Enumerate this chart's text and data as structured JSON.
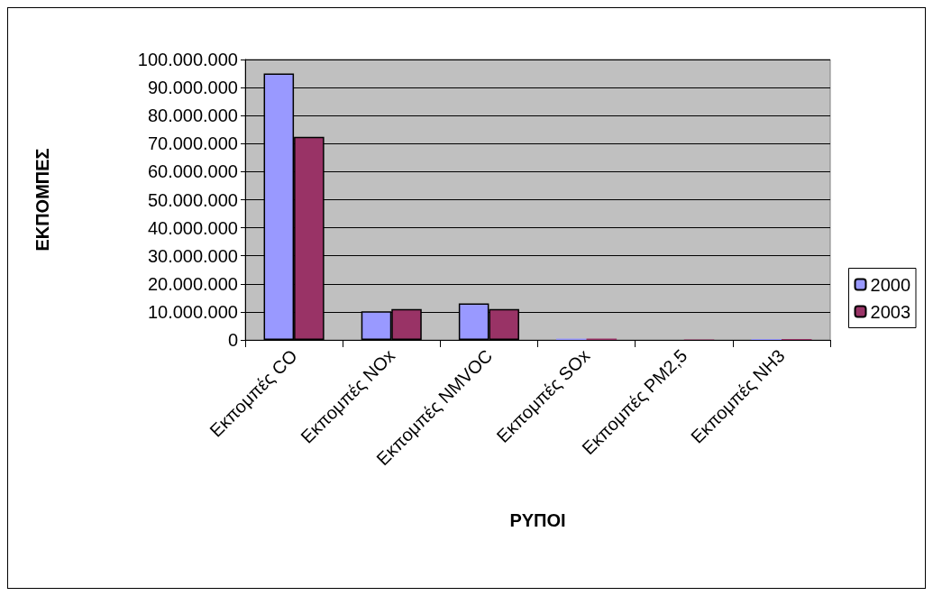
{
  "chart_data": {
    "type": "bar",
    "xlabel": "ΡΥΠΟΙ",
    "ylabel": "ΕΚΠΟΜΠΕΣ",
    "categories": [
      "Εκπομπές CO",
      "Εκπομπές NOx",
      "Εκπομπές NMVOC",
      "Εκπομπές SOx",
      "Εκπομπές PM2,5",
      "Εκπομπές NH3"
    ],
    "series": [
      {
        "name": "2000",
        "color": "#9999ff",
        "values": [
          95000000,
          10200000,
          13000000,
          500000,
          null,
          300000
        ]
      },
      {
        "name": "2003",
        "color": "#993366",
        "values": [
          72400000,
          11000000,
          11000000,
          500000,
          200000,
          300000
        ]
      }
    ],
    "ylim": [
      0,
      100000000
    ],
    "yticks": [
      {
        "value": 0,
        "label": "0"
      },
      {
        "value": 10000000,
        "label": "10.000.000"
      },
      {
        "value": 20000000,
        "label": "20.000.000"
      },
      {
        "value": 30000000,
        "label": "30.000.000"
      },
      {
        "value": 40000000,
        "label": "40.000.000"
      },
      {
        "value": 50000000,
        "label": "50.000.000"
      },
      {
        "value": 60000000,
        "label": "60.000.000"
      },
      {
        "value": 70000000,
        "label": "70.000.000"
      },
      {
        "value": 80000000,
        "label": "80.000.000"
      },
      {
        "value": 90000000,
        "label": "90.000.000"
      },
      {
        "value": 100000000,
        "label": "100.000.000"
      }
    ],
    "grid": "y",
    "legend": "right"
  }
}
